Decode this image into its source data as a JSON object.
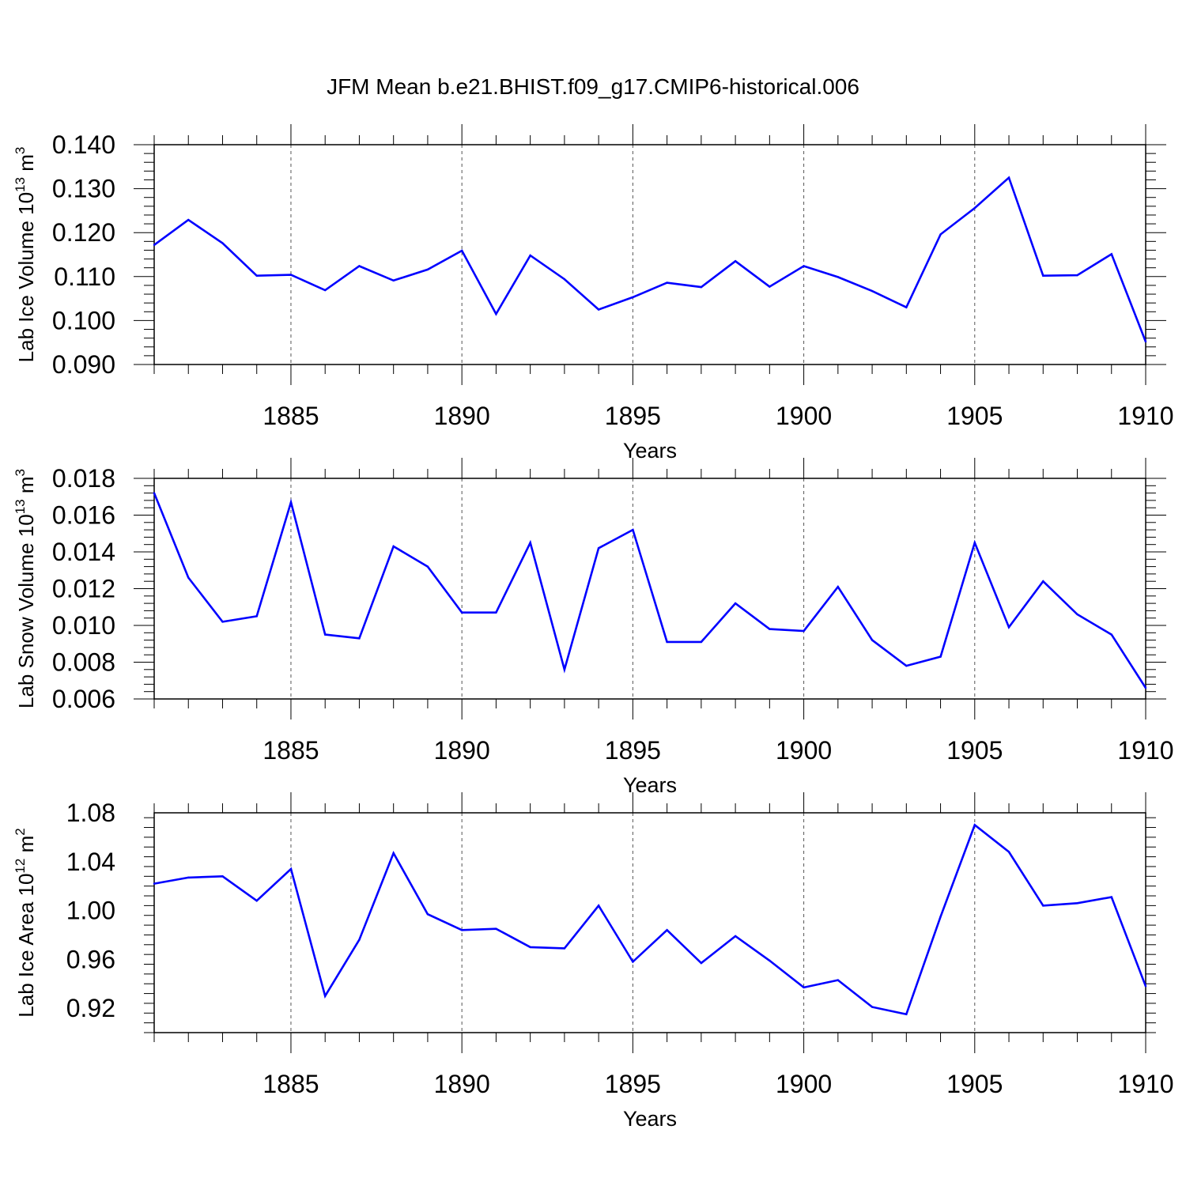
{
  "title": "JFM Mean b.e21.BHIST.f09_g17.CMIP6-historical.006",
  "line_color": "#0000ff",
  "chart_data": [
    {
      "type": "line",
      "title": "",
      "xlabel": "Years",
      "ylabel_prefix": "Lab Ice Volume 10",
      "ylabel_exponent": "13",
      "ylabel_unit": " m",
      "ylabel_unit_exponent": "3",
      "xlim": [
        1881,
        1910
      ],
      "ylim": [
        0.09,
        0.14
      ],
      "xticks": [
        1885,
        1890,
        1895,
        1900,
        1905,
        1910
      ],
      "yticks": [
        0.09,
        0.1,
        0.11,
        0.12,
        0.13,
        0.14
      ],
      "ytick_labels": [
        "0.090",
        "0.100",
        "0.110",
        "0.120",
        "0.130",
        "0.140"
      ],
      "grid": "vertical dashed",
      "x": [
        1881,
        1882,
        1883,
        1884,
        1885,
        1886,
        1887,
        1888,
        1889,
        1890,
        1891,
        1892,
        1893,
        1894,
        1895,
        1896,
        1897,
        1898,
        1899,
        1900,
        1901,
        1902,
        1903,
        1904,
        1905,
        1906,
        1907,
        1908,
        1909,
        1910
      ],
      "y": [
        0.1172,
        0.1229,
        0.1176,
        0.1102,
        0.1104,
        0.1069,
        0.1124,
        0.1091,
        0.1116,
        0.1159,
        0.1015,
        0.1148,
        0.1094,
        0.1025,
        0.1053,
        0.1086,
        0.1076,
        0.1135,
        0.1077,
        0.1124,
        0.1099,
        0.1067,
        0.103,
        0.1196,
        0.1256,
        0.1325,
        0.1102,
        0.1103,
        0.1151,
        0.0952
      ]
    },
    {
      "type": "line",
      "title": "",
      "xlabel": "Years",
      "ylabel_prefix": "Lab Snow Volume 10",
      "ylabel_exponent": "13",
      "ylabel_unit": " m",
      "ylabel_unit_exponent": "3",
      "xlim": [
        1881,
        1910
      ],
      "ylim": [
        0.006,
        0.018
      ],
      "xticks": [
        1885,
        1890,
        1895,
        1900,
        1905,
        1910
      ],
      "yticks": [
        0.006,
        0.008,
        0.01,
        0.012,
        0.014,
        0.016,
        0.018
      ],
      "ytick_labels": [
        "0.006",
        "0.008",
        "0.010",
        "0.012",
        "0.014",
        "0.016",
        "0.018"
      ],
      "grid": "vertical dashed",
      "x": [
        1881,
        1882,
        1883,
        1884,
        1885,
        1886,
        1887,
        1888,
        1889,
        1890,
        1891,
        1892,
        1893,
        1894,
        1895,
        1896,
        1897,
        1898,
        1899,
        1900,
        1901,
        1902,
        1903,
        1904,
        1905,
        1906,
        1907,
        1908,
        1909,
        1910
      ],
      "y": [
        0.0172,
        0.0126,
        0.0102,
        0.0105,
        0.0167,
        0.0095,
        0.0093,
        0.0143,
        0.0132,
        0.0107,
        0.0107,
        0.0145,
        0.0076,
        0.0142,
        0.0152,
        0.0091,
        0.0091,
        0.0112,
        0.0098,
        0.0097,
        0.0121,
        0.0092,
        0.0078,
        0.0083,
        0.0145,
        0.0099,
        0.0124,
        0.0106,
        0.0095,
        0.0066
      ]
    },
    {
      "type": "line",
      "title": "",
      "xlabel": "Years",
      "ylabel_prefix": "Lab Ice Area 10",
      "ylabel_exponent": "12",
      "ylabel_unit": " m",
      "ylabel_unit_exponent": "2",
      "xlim": [
        1881,
        1910
      ],
      "ylim": [
        0.9,
        1.08
      ],
      "xticks": [
        1885,
        1890,
        1895,
        1900,
        1905,
        1910
      ],
      "yticks": [
        0.92,
        0.96,
        1.0,
        1.04,
        1.08
      ],
      "ytick_labels": [
        "0.92",
        "0.96",
        "1.00",
        "1.04",
        "1.08"
      ],
      "grid": "vertical dashed",
      "x": [
        1881,
        1882,
        1883,
        1884,
        1885,
        1886,
        1887,
        1888,
        1889,
        1890,
        1891,
        1892,
        1893,
        1894,
        1895,
        1896,
        1897,
        1898,
        1899,
        1900,
        1901,
        1902,
        1903,
        1904,
        1905,
        1906,
        1907,
        1908,
        1909,
        1910
      ],
      "y": [
        1.022,
        1.027,
        1.028,
        1.008,
        1.034,
        0.93,
        0.976,
        1.047,
        0.997,
        0.984,
        0.985,
        0.97,
        0.969,
        1.004,
        0.958,
        0.984,
        0.957,
        0.979,
        0.959,
        0.937,
        0.943,
        0.921,
        0.915,
        0.995,
        1.07,
        1.048,
        1.004,
        1.006,
        1.011,
        0.938
      ]
    }
  ]
}
